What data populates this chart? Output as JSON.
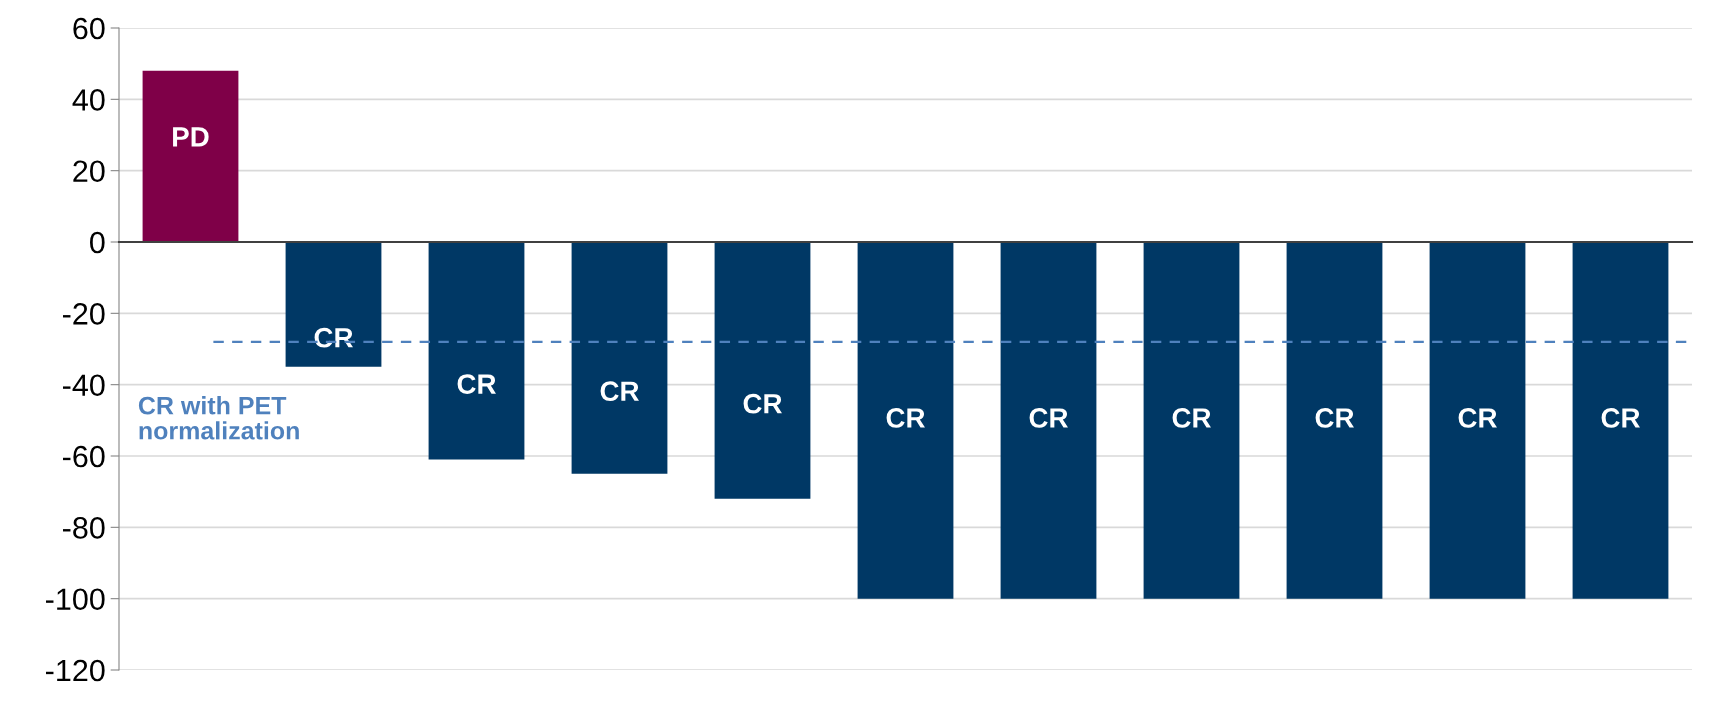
{
  "chart_data": {
    "type": "bar",
    "categories": [
      null,
      null,
      null,
      null,
      null,
      null,
      null,
      null,
      null,
      null,
      null
    ],
    "values": [
      48,
      -35,
      -61,
      -65,
      -72,
      -100,
      -100,
      -100,
      -100,
      -100,
      -100
    ],
    "colors": [
      "#7f0048",
      "#003865",
      "#003865",
      "#003865",
      "#003865",
      "#003865",
      "#003865",
      "#003865",
      "#003865",
      "#003865",
      "#003865"
    ],
    "value_labels": [
      "PD",
      "CR",
      "CR",
      "CR",
      "CR",
      "CR",
      "CR",
      "CR",
      "CR",
      "CR",
      "CR"
    ],
    "ylim": [
      -120,
      60
    ],
    "yticks": [
      -120,
      -100,
      -80,
      -60,
      -40,
      -20,
      0,
      20,
      40,
      60
    ],
    "grid": "y",
    "ref_lines": [
      {
        "axis": "y",
        "value": -28,
        "label": "CR with PET normalization",
        "color": "#4f81bd",
        "line_style": "dashed"
      }
    ]
  }
}
